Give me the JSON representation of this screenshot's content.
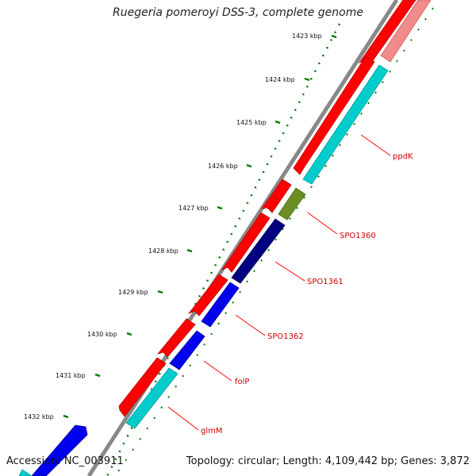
{
  "title": "Ruegeria pomeroyi DSS-3, complete genome",
  "ticks": [
    {
      "label": "1423 kbp"
    },
    {
      "label": "1424 kbp"
    },
    {
      "label": "1425 kbp"
    },
    {
      "label": "1426 kbp"
    },
    {
      "label": "1427 kbp"
    },
    {
      "label": "1428 kbp"
    },
    {
      "label": "1429 kbp"
    },
    {
      "label": "1430 kbp"
    },
    {
      "label": "1431 kbp"
    },
    {
      "label": "1432 kbp"
    }
  ],
  "gene_labels": [
    {
      "label": "ppdK"
    },
    {
      "label": "SPO1360"
    },
    {
      "label": "SPO1361"
    },
    {
      "label": "SPO1362"
    },
    {
      "label": "folP"
    },
    {
      "label": "glmM"
    }
  ],
  "colors": {
    "cds_forward": "#ff0000",
    "cds_pink": "#f08c8c",
    "cyan": "#00cccc",
    "olive": "#6b8e23",
    "navy": "#000080",
    "blue": "#0000ee",
    "tick_green": "#007a00",
    "label_red": "#cc0000",
    "backbone": "#888888"
  },
  "footer": {
    "accession": "Accession: NC_003911",
    "topology": "Topology: circular; Length: 4,109,442 bp; Genes: 3,872"
  }
}
